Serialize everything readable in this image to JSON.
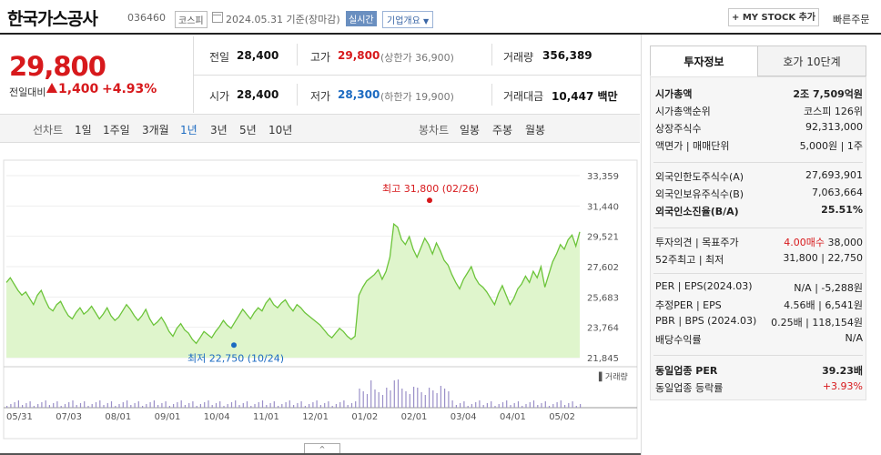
{
  "header": {
    "name": "한국가스공사",
    "code": "036460",
    "market": "코스피",
    "date_basis": "2024.05.31 기준(장마감)",
    "realtime": "실시간",
    "company_overview": "기업개요",
    "mystock": "+ MY STOCK 추가",
    "quick_order": "빠른주문"
  },
  "quote": {
    "price": "29,800",
    "change_label": "전일대비",
    "change_value": "1,400",
    "change_pct": "+4.93%",
    "prev_label": "전일",
    "prev": "28,400",
    "open_label": "시가",
    "open": "28,400",
    "high_label": "고가",
    "high": "29,800",
    "upper_limit": "(상한가 36,900)",
    "low_label": "저가",
    "low": "28,300",
    "lower_limit": "(하한가 19,900)",
    "volume_label": "거래량",
    "volume": "356,389",
    "amount_label": "거래대금",
    "amount": "10,447 백만"
  },
  "chart_tabs": {
    "line_label": "선차트",
    "line": [
      "1일",
      "1주일",
      "3개월",
      "1년",
      "3년",
      "5년",
      "10년"
    ],
    "active": "1년",
    "candle_label": "봉차트",
    "candle": [
      "일봉",
      "주봉",
      "월봉"
    ]
  },
  "chart_data": {
    "type": "area",
    "x_ticks": [
      "05/31",
      "07/03",
      "08/01",
      "09/01",
      "10/04",
      "11/01",
      "12/01",
      "01/02",
      "02/01",
      "03/04",
      "04/01",
      "05/02"
    ],
    "y_ticks": [
      "33,359",
      "31,440",
      "29,521",
      "27,602",
      "25,683",
      "23,764",
      "21,845"
    ],
    "ylim": [
      21845,
      33359
    ],
    "values": [
      26600,
      26900,
      26500,
      26100,
      25800,
      26000,
      25600,
      25200,
      25800,
      26100,
      25500,
      25000,
      24800,
      25200,
      25400,
      24900,
      24500,
      24300,
      24700,
      25000,
      24600,
      24800,
      25100,
      24700,
      24300,
      24600,
      25000,
      24500,
      24200,
      24400,
      24800,
      25200,
      24900,
      24500,
      24200,
      24500,
      24900,
      24300,
      23900,
      24100,
      24400,
      24000,
      23500,
      23200,
      23700,
      24000,
      23600,
      23400,
      23000,
      22750,
      23100,
      23500,
      23300,
      23100,
      23500,
      23800,
      24200,
      23900,
      23700,
      24100,
      24500,
      24900,
      24600,
      24300,
      24700,
      25000,
      24800,
      25300,
      25600,
      25200,
      25000,
      25300,
      25500,
      25100,
      24800,
      25200,
      25000,
      24700,
      24500,
      24300,
      24100,
      23900,
      23600,
      23300,
      23100,
      23400,
      23700,
      23500,
      23200,
      23000,
      23200,
      25800,
      26300,
      26700,
      26900,
      27100,
      27400,
      26800,
      27300,
      28200,
      30300,
      30100,
      29300,
      29000,
      29500,
      28700,
      28200,
      28800,
      29400,
      29000,
      28400,
      29100,
      28600,
      28000,
      27700,
      27100,
      26600,
      26200,
      26800,
      27200,
      27600,
      26900,
      26500,
      26300,
      26000,
      25600,
      25200,
      25900,
      26400,
      25800,
      25200,
      25600,
      26200,
      26500,
      27000,
      26600,
      27300,
      26900,
      27600,
      26300,
      27100,
      27900,
      28400,
      29000,
      28700,
      29300,
      29600,
      28900,
      29800
    ],
    "max_label": "최고 31,800 (02/26)",
    "min_label": "최저 22,750 (10/24)",
    "volume_label": "거래량",
    "line_color": "#6cc43a",
    "fill_color": "#dff5cc"
  },
  "info": {
    "tab_active": "투자정보",
    "tab_other": "호가 10단계",
    "rows1": [
      {
        "k": "시가총액",
        "v": "2조 7,509억원",
        "b": true
      },
      {
        "k": "시가총액순위",
        "v": "코스피 126위"
      },
      {
        "k": "상장주식수",
        "v": "92,313,000"
      },
      {
        "k": "액면가 | 매매단위",
        "v": "5,000원 | 1주"
      }
    ],
    "rows2": [
      {
        "k": "외국인한도주식수(A)",
        "v": "27,693,901"
      },
      {
        "k": "외국인보유주식수(B)",
        "v": "7,063,664"
      },
      {
        "k": "외국인소진율(B/A)",
        "v": "25.51%",
        "b": true
      }
    ],
    "rows3": [
      {
        "k": "투자의견 | 목표주가",
        "v_red": "4.00매수",
        "v": "38,000"
      },
      {
        "k": "52주최고 | 최저",
        "v": "31,800 | 22,750"
      }
    ],
    "rows4": [
      {
        "k": "PER | EPS(2024.03)",
        "v": "N/A | -5,288원"
      },
      {
        "k": "추정PER | EPS",
        "v": "4.56배 | 6,541원"
      },
      {
        "k": "PBR | BPS (2024.03)",
        "v": "0.25배 | 118,154원"
      },
      {
        "k": "배당수익률",
        "v": "N/A"
      }
    ],
    "rows5": [
      {
        "k": "동일업종 PER",
        "v": "39.23배",
        "b": true
      },
      {
        "k": "동일업종 등락률",
        "v": "+3.93%",
        "red": true
      }
    ]
  },
  "bottom_button": "^"
}
